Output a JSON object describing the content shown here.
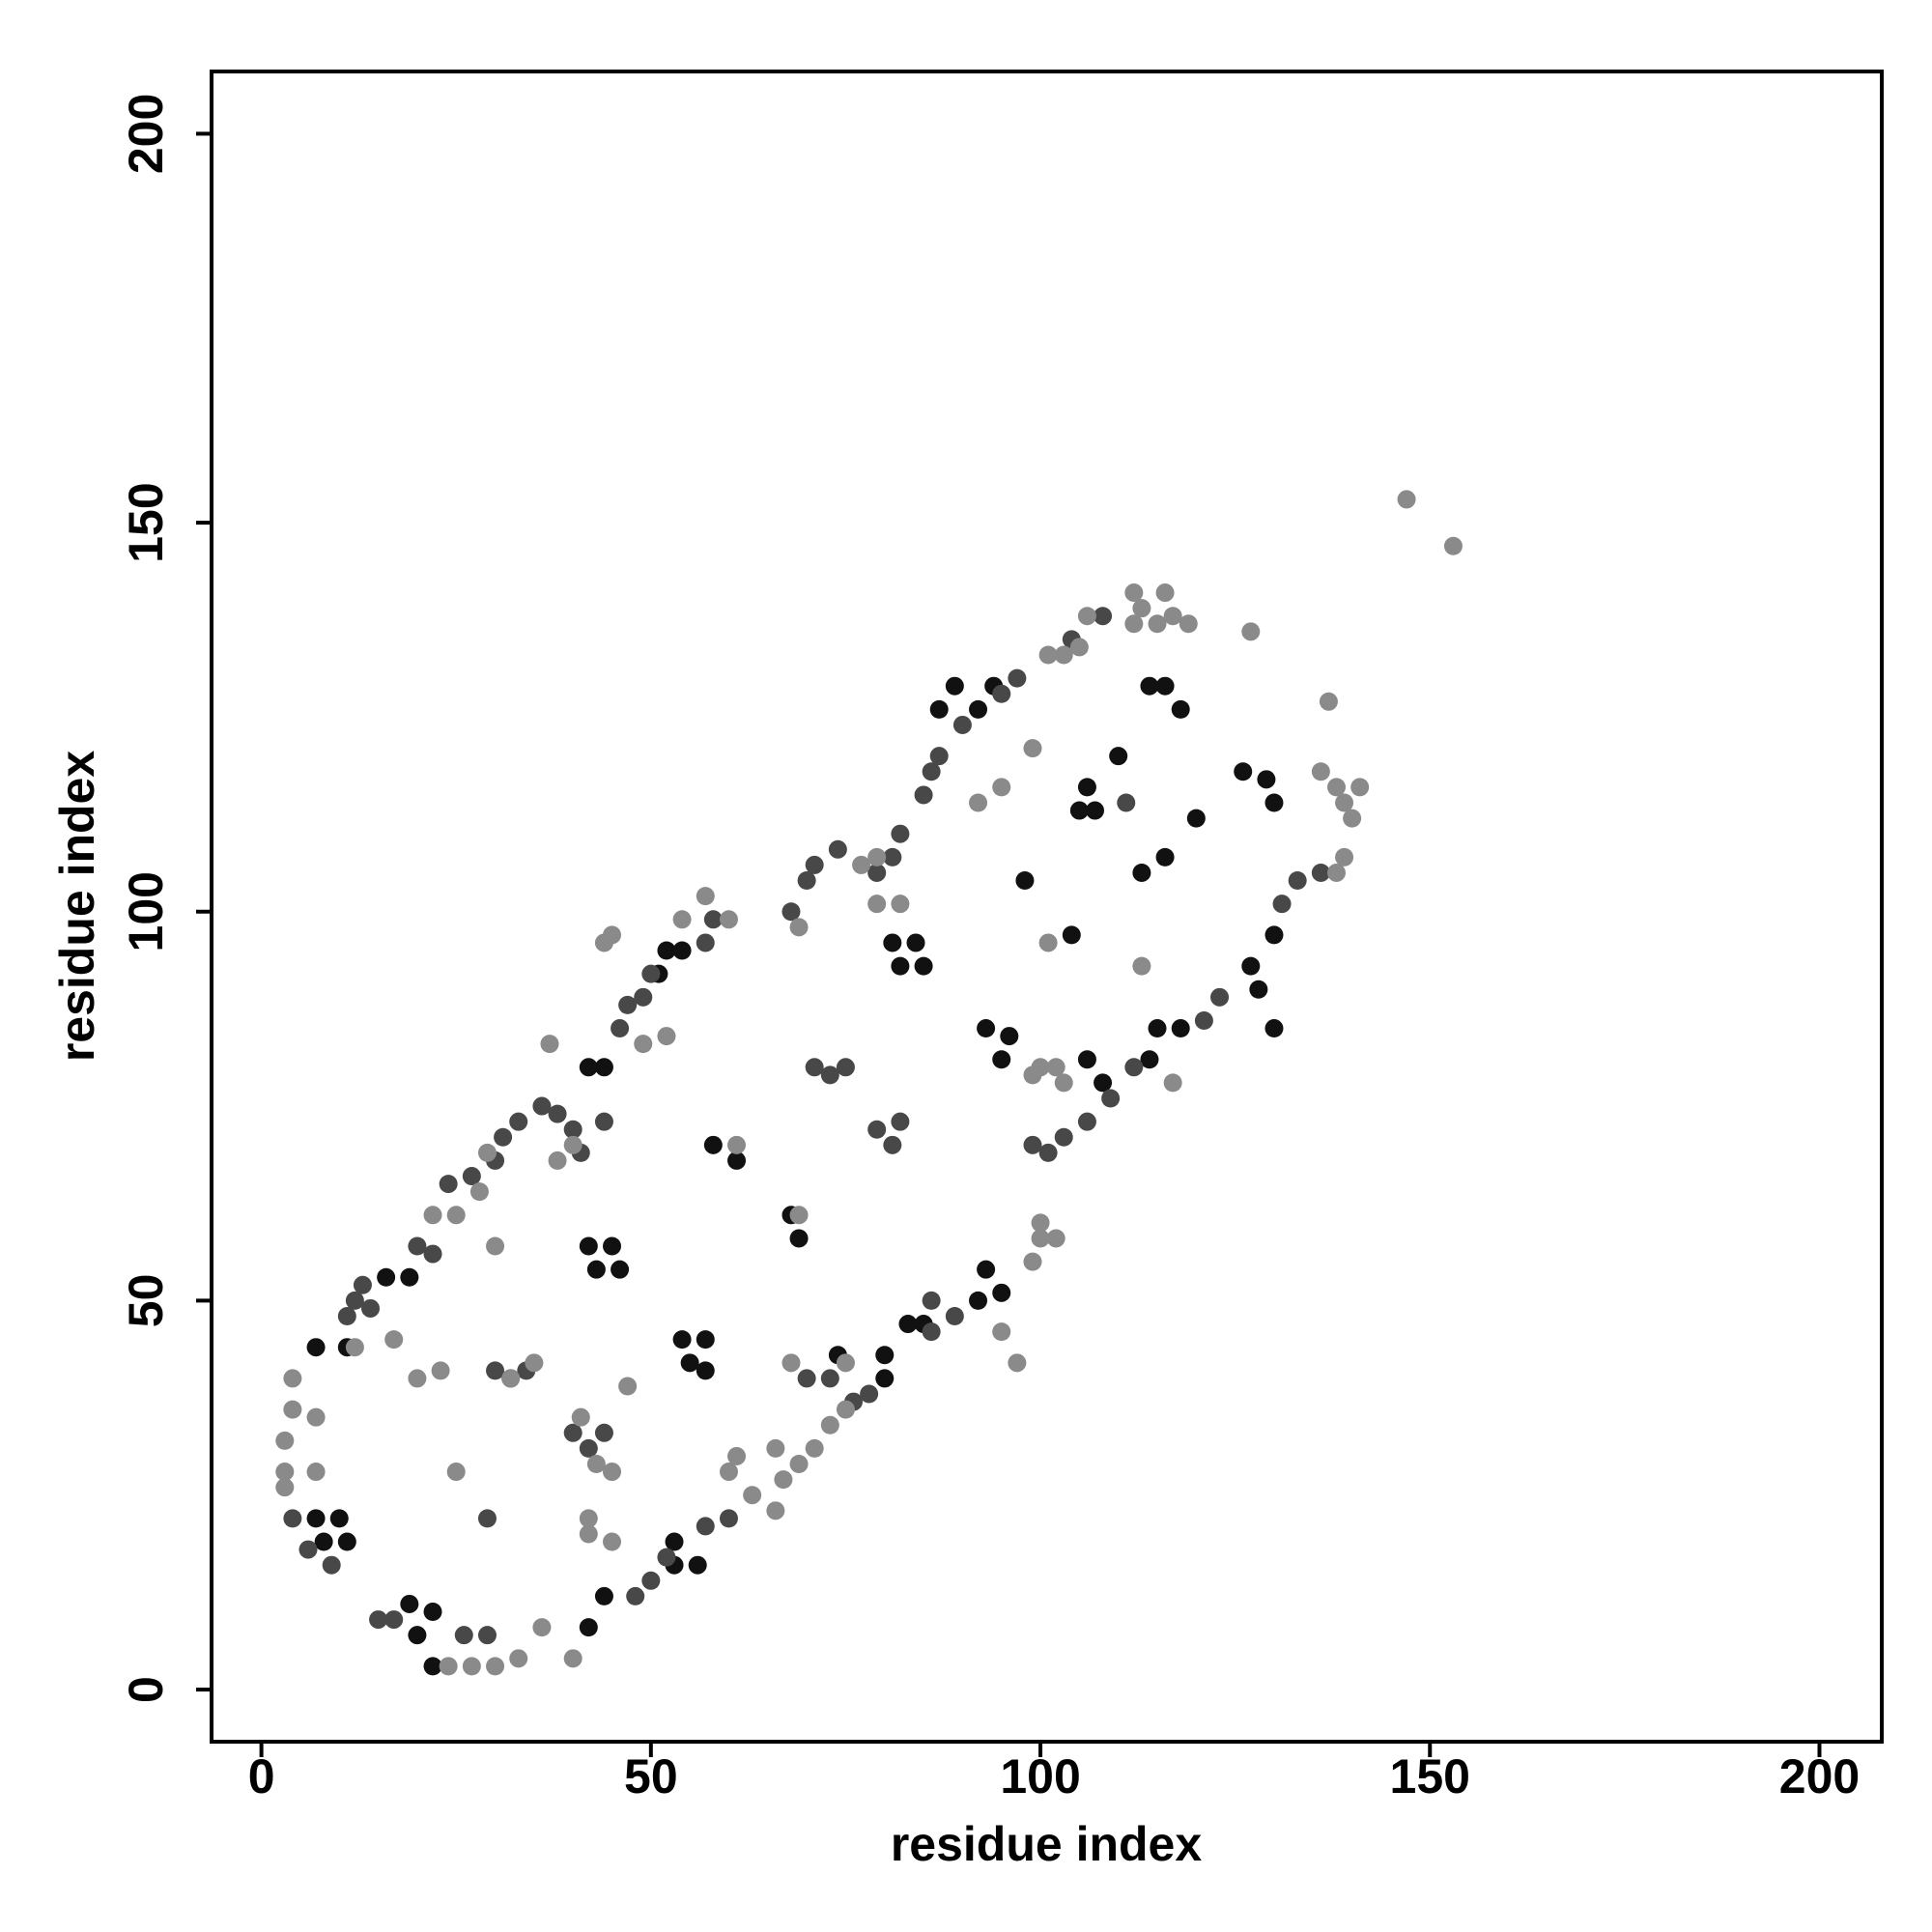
{
  "chart_data": {
    "type": "scatter",
    "xlabel": "residue index",
    "ylabel": "residue index",
    "xlim": [
      -6.4,
      208
    ],
    "ylim": [
      -6.7,
      208
    ],
    "xticks": [
      0,
      50,
      100,
      150,
      200
    ],
    "yticks": [
      0,
      50,
      100,
      150,
      200
    ],
    "series": [
      {
        "color": "#111111",
        "x": [
          7,
          11,
          16,
          19,
          7,
          10,
          8,
          11,
          19,
          22,
          20,
          22,
          42,
          45,
          43,
          46,
          54,
          57,
          55,
          57,
          42,
          44,
          53,
          53,
          56,
          42,
          44,
          52,
          54,
          51,
          81,
          84,
          82,
          85,
          68,
          69,
          58,
          61,
          74,
          80,
          80,
          83,
          85,
          93,
          95,
          92,
          93,
          96,
          95,
          105,
          107,
          106,
          114,
          116,
          118,
          113,
          116,
          126,
          129,
          130,
          127,
          130,
          128,
          130,
          115,
          118,
          114,
          104,
          106,
          108,
          87,
          89,
          92,
          94,
          98,
          110,
          120
        ],
        "y": [
          44,
          44,
          53,
          53,
          22,
          22,
          19,
          19,
          11,
          10,
          7,
          3,
          57,
          57,
          54,
          54,
          45,
          45,
          42,
          41,
          8,
          12,
          19,
          16,
          16,
          80,
          80,
          95,
          95,
          92,
          96,
          96,
          93,
          93,
          61,
          58,
          70,
          68,
          43,
          43,
          40,
          47,
          47,
          54,
          51,
          50,
          85,
          84,
          81,
          113,
          113,
          116,
          129,
          129,
          126,
          105,
          107,
          118,
          117,
          114,
          93,
          97,
          90,
          85,
          85,
          85,
          81,
          97,
          81,
          78,
          126,
          129,
          126,
          129,
          104,
          120,
          112
        ]
      },
      {
        "color": "#484848",
        "x": [
          4,
          6,
          9,
          15,
          17,
          26,
          29,
          11,
          12,
          13,
          14,
          20,
          22,
          24,
          27,
          30,
          31,
          33,
          36,
          38,
          40,
          41,
          44,
          40,
          42,
          44,
          30,
          32,
          34,
          29,
          46,
          47,
          49,
          50,
          57,
          58,
          68,
          70,
          71,
          74,
          79,
          81,
          82,
          85,
          86,
          87,
          90,
          95,
          97,
          104,
          108,
          111,
          71,
          73,
          75,
          79,
          81,
          82,
          60,
          57,
          48,
          50,
          52,
          70,
          73,
          76,
          78,
          86,
          89,
          99,
          101,
          103,
          106,
          109,
          112,
          121,
          123,
          131,
          133,
          136,
          86
        ],
        "y": [
          22,
          18,
          16,
          9,
          9,
          7,
          7,
          48,
          50,
          52,
          49,
          57,
          56,
          65,
          66,
          68,
          71,
          73,
          75,
          74,
          72,
          69,
          73,
          33,
          31,
          33,
          41,
          40,
          41,
          22,
          85,
          88,
          89,
          92,
          96,
          99,
          100,
          104,
          106,
          108,
          105,
          107,
          110,
          115,
          118,
          120,
          124,
          128,
          130,
          135,
          138,
          114,
          80,
          79,
          80,
          72,
          70,
          73,
          22,
          21,
          12,
          14,
          17,
          40,
          40,
          37,
          38,
          50,
          48,
          70,
          69,
          71,
          73,
          76,
          80,
          86,
          89,
          101,
          104,
          105,
          46
        ]
      },
      {
        "color": "#8a8a8a",
        "x": [
          3,
          3,
          4,
          4,
          3,
          7,
          7,
          12,
          17,
          25,
          20,
          23,
          30,
          25,
          28,
          29,
          32,
          35,
          41,
          43,
          45,
          42,
          42,
          45,
          36,
          40,
          33,
          30,
          27,
          24,
          47,
          61,
          63,
          66,
          67,
          69,
          71,
          73,
          75,
          66,
          68,
          75,
          60,
          77,
          79,
          82,
          79,
          92,
          95,
          99,
          101,
          103,
          105,
          106,
          112,
          113,
          115,
          116,
          117,
          112,
          119,
          127,
          137,
          136,
          138,
          139,
          140,
          141,
          139,
          138,
          147,
          153,
          97,
          95,
          99,
          100,
          100,
          102,
          100,
          102,
          103,
          99,
          101,
          113,
          117,
          54,
          57,
          60,
          69,
          49,
          52,
          44,
          45,
          61,
          69,
          37,
          40,
          38,
          22
        ],
        "y": [
          28,
          32,
          36,
          40,
          26,
          28,
          35,
          44,
          45,
          28,
          40,
          41,
          57,
          61,
          64,
          69,
          40,
          42,
          35,
          29,
          28,
          22,
          20,
          19,
          8,
          4,
          4,
          3,
          3,
          3,
          39,
          30,
          25,
          23,
          27,
          29,
          31,
          34,
          36,
          31,
          42,
          42,
          28,
          106,
          107,
          101,
          101,
          114,
          116,
          121,
          133,
          133,
          134,
          138,
          141,
          139,
          137,
          141,
          138,
          137,
          137,
          136,
          127,
          118,
          116,
          114,
          112,
          116,
          107,
          105,
          153,
          147,
          42,
          46,
          55,
          58,
          60,
          58,
          80,
          80,
          78,
          79,
          96,
          93,
          78,
          99,
          102,
          99,
          98,
          83,
          84,
          96,
          97,
          70,
          61,
          83,
          70,
          68,
          61
        ]
      }
    ]
  }
}
